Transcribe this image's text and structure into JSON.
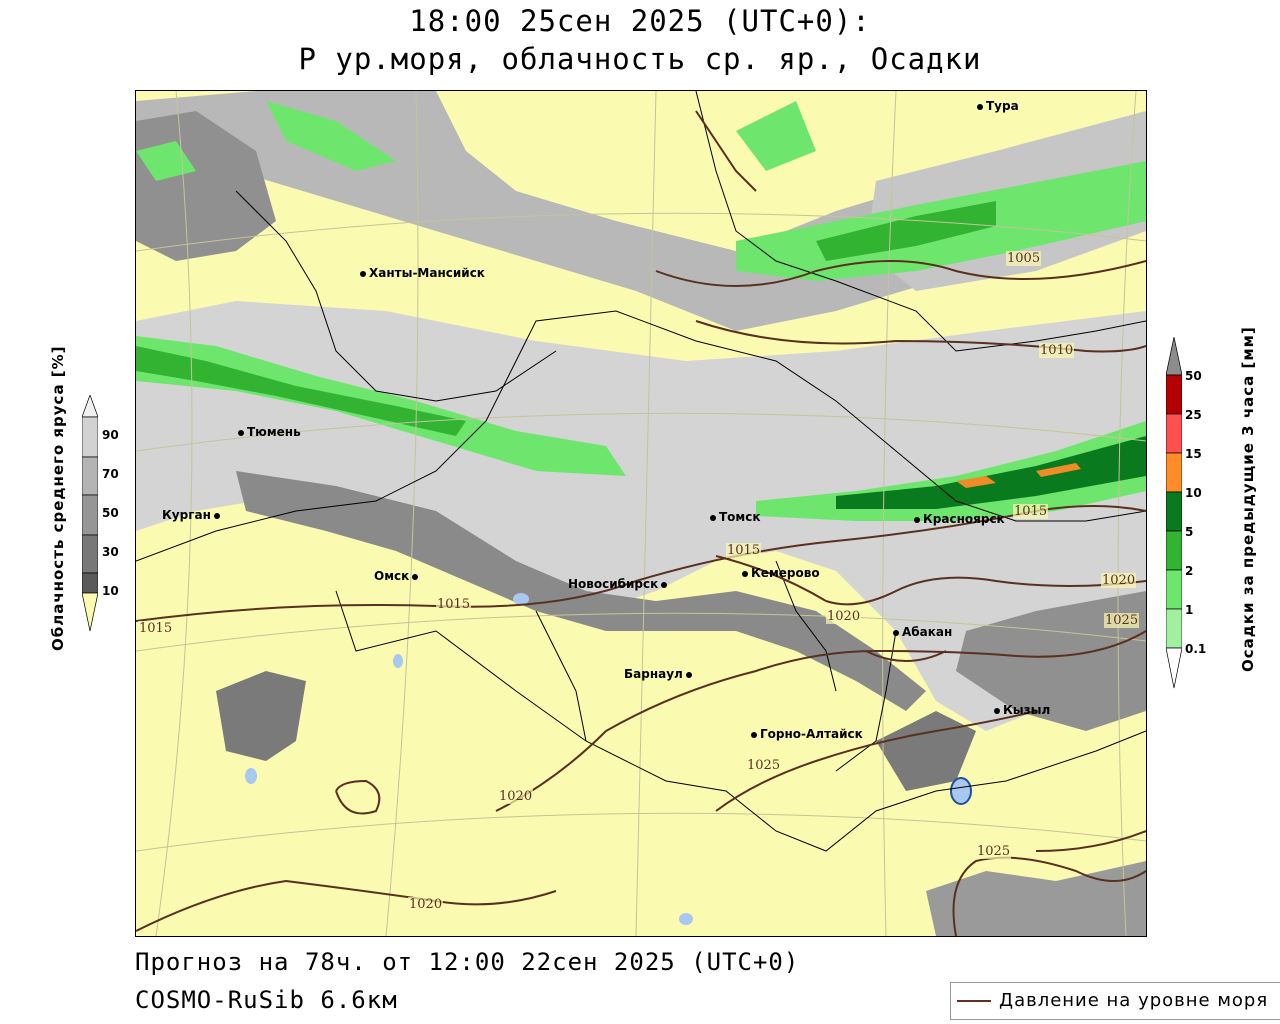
{
  "header": {
    "line1": "18:00 25сен 2025 (UTC+0):",
    "line2": "P ур.моря, облачность ср. яр., Осадки"
  },
  "footer": {
    "line1": "Прогноз на 78ч. от 12:00 22сен 2025 (UTC+0)",
    "line2": "COSMO-RuSib 6.6км"
  },
  "legend": {
    "pressure_label": "Давление на уровне моря",
    "pressure_color": "#5a3020"
  },
  "cloud_colorbar": {
    "title": "Облачность среднего яруса [%]",
    "ticks": [
      "90",
      "70",
      "50",
      "30",
      "10"
    ],
    "colors": [
      "#f0f0f0",
      "#d2d2d2",
      "#b4b4b4",
      "#969696",
      "#787878",
      "#5a5a5a",
      "#fbfab1"
    ]
  },
  "precip_colorbar": {
    "title": "Осадки за предыдущие 3 часа [мм]",
    "ticks": [
      "50",
      "25",
      "15",
      "10",
      "5",
      "2",
      "1",
      "0.1"
    ],
    "colors": [
      "#8c8c8c",
      "#b40000",
      "#ff5050",
      "#ff8c28",
      "#f08c28",
      "#0a7a1e",
      "#32b432",
      "#6ee66e",
      "#a0f0a0"
    ]
  },
  "map": {
    "background": "#fbfab1",
    "cities": [
      {
        "name": "Тура"
      },
      {
        "name": "Ханты-Мансийск"
      },
      {
        "name": "Тюмень"
      },
      {
        "name": "Курган"
      },
      {
        "name": "Омск"
      },
      {
        "name": "Новосибирск"
      },
      {
        "name": "Томск"
      },
      {
        "name": "Кемерово"
      },
      {
        "name": "Красноярск"
      },
      {
        "name": "Абакан"
      },
      {
        "name": "Барнаул"
      },
      {
        "name": "Горно-Алтайск"
      },
      {
        "name": "Кызыл"
      }
    ],
    "isobars": [
      "1005",
      "1010",
      "1015",
      "1015",
      "1015",
      "1015",
      "1020",
      "1020",
      "1020",
      "1020",
      "1025",
      "1025",
      "1025"
    ]
  }
}
